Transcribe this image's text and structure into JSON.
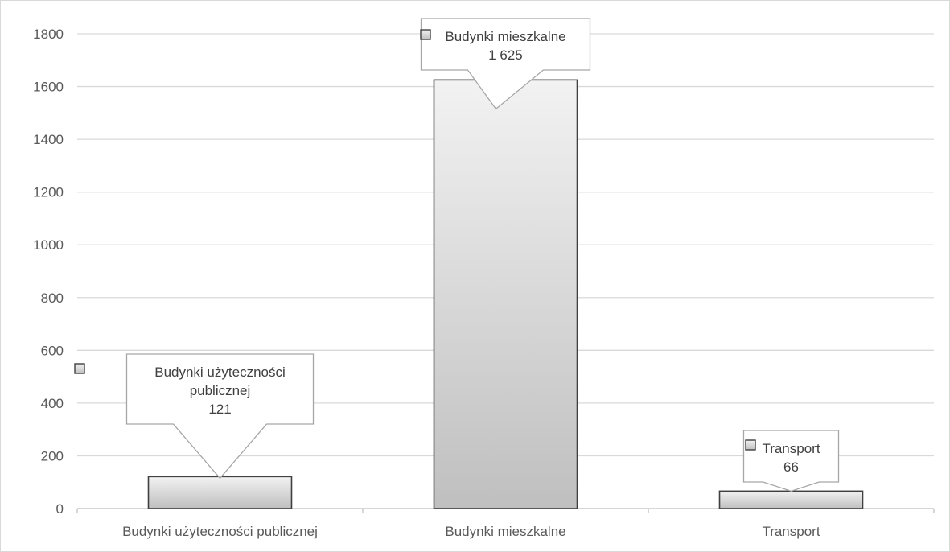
{
  "chart_data": {
    "type": "bar",
    "title": "",
    "xlabel": "",
    "ylabel": "",
    "categories": [
      "Budynki użyteczności publicznej",
      "Budynki mieszkalne",
      "Transport"
    ],
    "values": [
      121,
      1625,
      66
    ],
    "value_labels": [
      "121",
      "1 625",
      "66"
    ],
    "callout_lines": [
      [
        "Budynki użyteczności",
        "publicznej",
        "121"
      ],
      [
        "Budynki mieszkalne",
        "1 625"
      ],
      [
        "Transport",
        "66"
      ]
    ],
    "ylim": [
      0,
      1800
    ],
    "yticks": [
      0,
      200,
      400,
      600,
      800,
      1000,
      1200,
      1400,
      1600,
      1800
    ],
    "grid": true,
    "legend": "none",
    "colors": {
      "bar_top": "#f2f2f2",
      "bar_bottom": "#bfbfbf",
      "bar_stroke": "#404040",
      "grid": "#d9d9d9",
      "axis": "#bfbfbf",
      "callout_stroke": "#a6a6a6"
    }
  }
}
